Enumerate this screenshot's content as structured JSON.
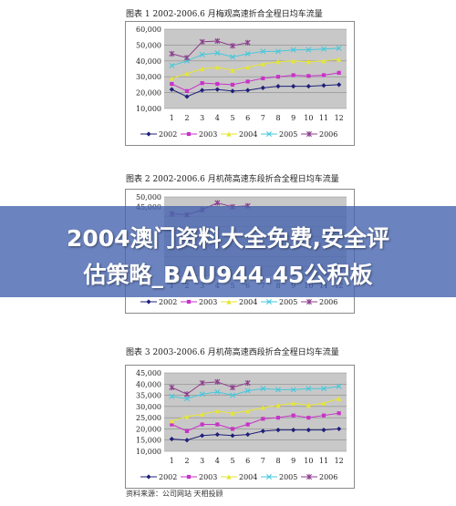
{
  "banner": {
    "line1": "2004澳门资料大全免费,安全评",
    "line2": "估策略_BAU944.45公积板"
  },
  "source_note": "资料来源：公司网站  天相投顾",
  "chart_data": [
    {
      "type": "line",
      "title": "图表 1    2002-2006.6 月梅观高速折合全程日均车流量",
      "categories": [
        "1",
        "2",
        "3",
        "4",
        "5",
        "6",
        "7",
        "8",
        "9",
        "10",
        "11",
        "12"
      ],
      "y_ticks": [
        "60,000",
        "50,000",
        "40,000",
        "30,000",
        "20,000",
        "10,000"
      ],
      "ylim": [
        10000,
        60000
      ],
      "grid": true,
      "legend": "bottom",
      "series": [
        {
          "name": "2002",
          "color": "#1f1f7a",
          "marker": "diamond",
          "values": [
            22000,
            17500,
            21500,
            22000,
            21000,
            21500,
            23000,
            24000,
            24000,
            24000,
            24500,
            25000
          ]
        },
        {
          "name": "2003",
          "color": "#c832c8",
          "marker": "square",
          "values": [
            25500,
            21000,
            26000,
            25500,
            25000,
            27000,
            29000,
            30000,
            31000,
            30500,
            31000,
            32500
          ]
        },
        {
          "name": "2004",
          "color": "#e6e632",
          "marker": "triangle",
          "values": [
            29000,
            32000,
            35000,
            36000,
            34000,
            36000,
            38000,
            39500,
            40000,
            39500,
            40000,
            41000
          ]
        },
        {
          "name": "2005",
          "color": "#46c8dc",
          "marker": "x",
          "values": [
            37000,
            40000,
            44000,
            45000,
            42500,
            44500,
            46000,
            46000,
            47000,
            47000,
            47500,
            48000
          ]
        },
        {
          "name": "2006",
          "color": "#8c3c8c",
          "marker": "star",
          "values": [
            44500,
            42000,
            52000,
            52500,
            49500,
            51500,
            null,
            null,
            null,
            null,
            null,
            null
          ]
        }
      ]
    },
    {
      "type": "line",
      "title": "图表 2    2002-2006.6 月机荷高速东段折合全程日均车流量",
      "categories": [
        "1",
        "2",
        "3",
        "4",
        "5",
        "6",
        "7",
        "8",
        "9",
        "10",
        "11",
        "12"
      ],
      "y_ticks": [
        "50,000",
        "45,000"
      ],
      "ylim": [
        10000,
        50000
      ],
      "grid": true,
      "legend": "bottom",
      "series": [
        {
          "name": "2002",
          "color": "#1f1f7a",
          "marker": "diamond",
          "values": [
            null,
            null,
            null,
            null,
            null,
            null,
            null,
            null,
            null,
            null,
            null,
            null
          ]
        },
        {
          "name": "2003",
          "color": "#c832c8",
          "marker": "square",
          "values": [
            null,
            null,
            null,
            null,
            null,
            null,
            null,
            null,
            null,
            null,
            null,
            null
          ]
        },
        {
          "name": "2004",
          "color": "#e6e632",
          "marker": "triangle",
          "values": [
            null,
            null,
            null,
            null,
            null,
            null,
            null,
            null,
            null,
            null,
            null,
            null
          ]
        },
        {
          "name": "2005",
          "color": "#46c8dc",
          "marker": "x",
          "values": [
            null,
            null,
            null,
            null,
            null,
            null,
            null,
            null,
            null,
            null,
            null,
            null
          ]
        },
        {
          "name": "2006",
          "color": "#8c3c8c",
          "marker": "star",
          "values": [
            41500,
            41000,
            43500,
            47000,
            45000,
            45500,
            null,
            null,
            null,
            null,
            null,
            null
          ]
        }
      ]
    },
    {
      "type": "line",
      "title": "图表 3    2003-2006.6 月机荷高速西段折合全程日均车流量",
      "categories": [
        "1",
        "2",
        "3",
        "4",
        "5",
        "6",
        "7",
        "8",
        "9",
        "10",
        "11",
        "12"
      ],
      "y_ticks": [
        "45,000",
        "40,000",
        "35,000",
        "30,000",
        "25,000",
        "20,000",
        "15,000",
        "10,000"
      ],
      "ylim": [
        10000,
        45000
      ],
      "grid": true,
      "legend": "bottom",
      "series": [
        {
          "name": "2002",
          "color": "#1f1f7a",
          "marker": "diamond",
          "values": [
            15500,
            15000,
            17000,
            17500,
            17000,
            17500,
            19000,
            19500,
            19500,
            19500,
            19500,
            20000
          ]
        },
        {
          "name": "2003",
          "color": "#c832c8",
          "marker": "square",
          "values": [
            22000,
            19000,
            22000,
            22000,
            20000,
            22000,
            24500,
            25000,
            26000,
            25000,
            26000,
            27000
          ]
        },
        {
          "name": "2004",
          "color": "#e6e632",
          "marker": "triangle",
          "values": [
            23500,
            25500,
            26500,
            28000,
            27000,
            28000,
            29500,
            30500,
            31500,
            30500,
            31500,
            33500
          ]
        },
        {
          "name": "2005",
          "color": "#46c8dc",
          "marker": "x",
          "values": [
            34500,
            33500,
            35500,
            36500,
            35000,
            37000,
            38000,
            37500,
            37500,
            38000,
            38000,
            39000
          ]
        },
        {
          "name": "2006",
          "color": "#8c3c8c",
          "marker": "star",
          "values": [
            38500,
            35500,
            40500,
            41000,
            38500,
            40500,
            null,
            null,
            null,
            null,
            null,
            null
          ]
        }
      ]
    }
  ]
}
